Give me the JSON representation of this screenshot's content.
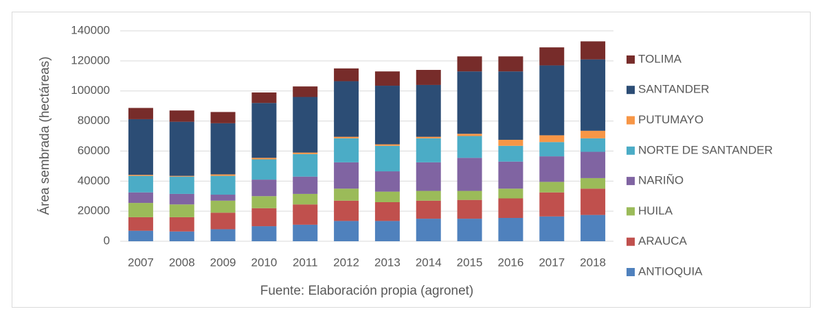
{
  "chart_data": {
    "type": "stacked_bar",
    "ylabel": "Área sembrada (hectáreas)",
    "xlabel": "Fuente: Elaboración propia (agronet)",
    "categories": [
      "2007",
      "2008",
      "2009",
      "2010",
      "2011",
      "2012",
      "2013",
      "2014",
      "2015",
      "2016",
      "2017",
      "2018"
    ],
    "series": [
      {
        "name": "ANTIOQUIA",
        "color": "#4f81bd",
        "values": [
          7000,
          6500,
          8000,
          10000,
          11000,
          13500,
          13500,
          15000,
          15000,
          15500,
          16500,
          17500
        ]
      },
      {
        "name": "ARAUCA",
        "color": "#c0504d",
        "values": [
          9000,
          9500,
          11000,
          12000,
          13500,
          13500,
          12500,
          12000,
          12500,
          13000,
          16000,
          17500
        ]
      },
      {
        "name": "HUILA",
        "color": "#9bbb59",
        "values": [
          9500,
          8500,
          8000,
          8000,
          7000,
          8000,
          7000,
          6500,
          6000,
          6500,
          7000,
          7000
        ]
      },
      {
        "name": "NARIÑO",
        "color": "#8064a2",
        "values": [
          7000,
          7000,
          4000,
          11000,
          11500,
          17500,
          13500,
          19000,
          22000,
          18000,
          17000,
          17500
        ]
      },
      {
        "name": "NORTE DE SANTANDER",
        "color": "#4bacc6",
        "values": [
          11000,
          11500,
          12500,
          13500,
          15000,
          16000,
          17000,
          16000,
          14500,
          10500,
          9500,
          9000
        ]
      },
      {
        "name": "PUTUMAYO",
        "color": "#f79646",
        "values": [
          700,
          500,
          1000,
          1000,
          1000,
          1000,
          1000,
          1000,
          1500,
          4000,
          4500,
          5000
        ]
      },
      {
        "name": "SANTANDER",
        "color": "#2c4d75",
        "values": [
          37000,
          36000,
          34000,
          36500,
          37000,
          37000,
          39000,
          34500,
          41500,
          45500,
          46500,
          47500
        ]
      },
      {
        "name": "TOLIMA",
        "color": "#772c2a",
        "values": [
          7500,
          7500,
          7500,
          7000,
          7000,
          8500,
          9500,
          10000,
          10000,
          10000,
          12000,
          12000
        ]
      }
    ],
    "ylim": [
      0,
      140000
    ],
    "yticks": [
      0,
      20000,
      40000,
      60000,
      80000,
      100000,
      120000,
      140000
    ],
    "grid": true,
    "legend": "right"
  }
}
